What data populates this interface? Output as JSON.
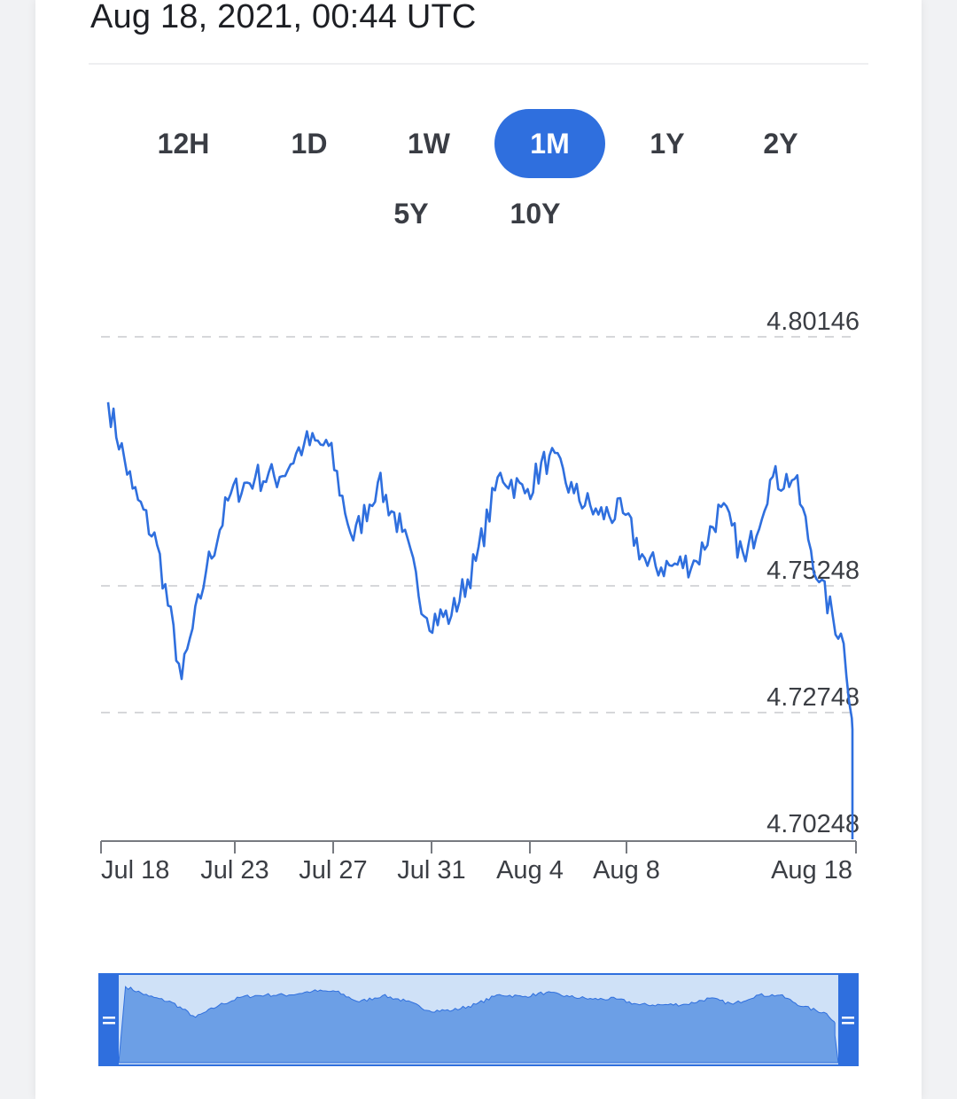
{
  "header": {
    "timestamp": "Aug 18, 2021, 00:44 UTC"
  },
  "range_selector": {
    "options": [
      "12H",
      "1D",
      "1W",
      "1M",
      "1Y",
      "2Y",
      "5Y",
      "10Y"
    ],
    "selected": "1M"
  },
  "colors": {
    "line": "#2f6fde",
    "accent": "#2f6fde",
    "navigator_fill": "#6c9fe6",
    "navigator_window": "#cfe1f7",
    "grid": "#c9cacd",
    "axis": "#777a80"
  },
  "chart_data": {
    "type": "line",
    "title": "",
    "xlabel": "",
    "ylabel": "",
    "x_ticks": [
      "Jul 18",
      "Jul 23",
      "Jul 27",
      "Jul 31",
      "Aug 4",
      "Aug 8",
      "Aug 18"
    ],
    "y_ticks": [
      "4.80146",
      "4.75248",
      "4.72748",
      "4.70248"
    ],
    "ylim": [
      4.70248,
      4.80146
    ],
    "grid": "horizontal dashed",
    "legend": "none",
    "series": [
      {
        "x": [
          "2021-07-18",
          "2021-07-19",
          "2021-07-20",
          "2021-07-21",
          "2021-07-22",
          "2021-07-23",
          "2021-07-24",
          "2021-07-25",
          "2021-07-26",
          "2021-07-27",
          "2021-07-28",
          "2021-07-29",
          "2021-07-30",
          "2021-07-31",
          "2021-08-01",
          "2021-08-02",
          "2021-08-03",
          "2021-08-04",
          "2021-08-05",
          "2021-08-06",
          "2021-08-07",
          "2021-08-08",
          "2021-08-09",
          "2021-08-10",
          "2021-08-11",
          "2021-08-12",
          "2021-08-13",
          "2021-08-14",
          "2021-08-15",
          "2021-08-16",
          "2021-08-17",
          "2021-08-18"
        ],
        "values": [
          4.7886,
          4.7716,
          4.7605,
          4.7341,
          4.7555,
          4.7706,
          4.7738,
          4.7739,
          4.7805,
          4.78,
          4.7614,
          4.7728,
          4.7631,
          4.7461,
          4.7466,
          4.7574,
          4.7747,
          4.7707,
          4.7781,
          4.7707,
          4.7665,
          4.7668,
          4.7564,
          4.7564,
          4.7573,
          4.768,
          4.7573,
          4.7733,
          4.7735,
          4.7532,
          4.7411,
          4.701
        ]
      }
    ]
  }
}
